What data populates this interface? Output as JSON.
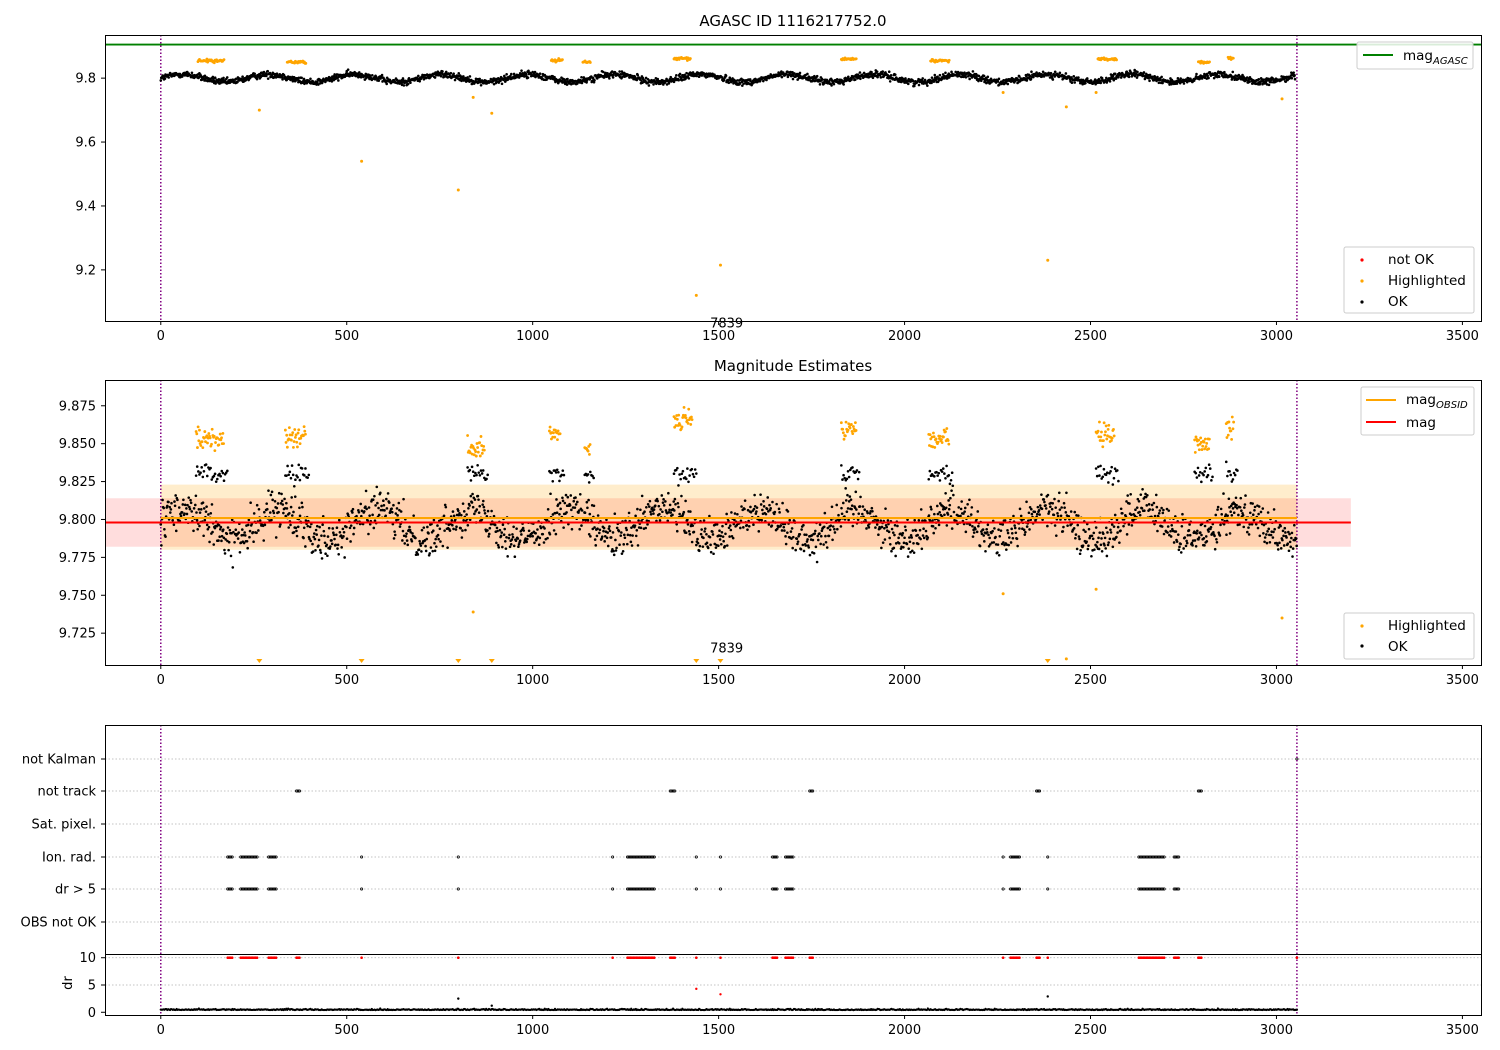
{
  "colors": {
    "ok": "#000000",
    "highlighted": "#ffa500",
    "not_ok": "#ff0000",
    "mag_agasc": "#008000",
    "mag_obsid": "#ffa500",
    "mag": "#ff0000",
    "obs_boundary": "#800080",
    "band_orange": "#ffa50033",
    "band_red": "#ff000022"
  },
  "chart_data": [
    {
      "type": "scatter",
      "title": "AGASC ID 1116217752.0",
      "xlim": [
        -150,
        3550
      ],
      "ylim": [
        9.04,
        9.935
      ],
      "xticks": [
        "0",
        "500",
        "1000",
        "1500",
        "2000",
        "2500",
        "3000",
        "3500"
      ],
      "yticks": [
        "9.2",
        "9.4",
        "9.6",
        "9.8"
      ],
      "hlines": [
        {
          "name": "mag_AGASC",
          "y": 9.905
        }
      ],
      "vlines": [
        0,
        3055
      ],
      "ok_baseline": 9.8,
      "annotation": {
        "text": "7839",
        "x": 1500,
        "y": 9.07
      },
      "highlighted_groups": [
        {
          "x": [
            100,
            170
          ],
          "y": 9.855
        },
        {
          "x": [
            340,
            390
          ],
          "y": 9.85
        },
        {
          "x": [
            1050,
            1080
          ],
          "y": 9.855
        },
        {
          "x": [
            1135,
            1155
          ],
          "y": 9.85
        },
        {
          "x": [
            1380,
            1425
          ],
          "y": 9.86
        },
        {
          "x": [
            1830,
            1870
          ],
          "y": 9.86
        },
        {
          "x": [
            2070,
            2120
          ],
          "y": 9.855
        },
        {
          "x": [
            2520,
            2570
          ],
          "y": 9.86
        },
        {
          "x": [
            2790,
            2820
          ],
          "y": 9.85
        },
        {
          "x": [
            2870,
            2885
          ],
          "y": 9.86
        }
      ],
      "highlighted_outliers": [
        {
          "x": 265,
          "y": 9.7
        },
        {
          "x": 540,
          "y": 9.54
        },
        {
          "x": 800,
          "y": 9.45
        },
        {
          "x": 840,
          "y": 9.74
        },
        {
          "x": 890,
          "y": 9.69
        },
        {
          "x": 1440,
          "y": 9.12
        },
        {
          "x": 1505,
          "y": 9.215
        },
        {
          "x": 2265,
          "y": 9.755
        },
        {
          "x": 2385,
          "y": 9.23
        },
        {
          "x": 2435,
          "y": 9.71
        },
        {
          "x": 2515,
          "y": 9.755
        },
        {
          "x": 3015,
          "y": 9.735
        }
      ],
      "legend_top": [
        {
          "label": "mag",
          "sub": "AGASC"
        }
      ],
      "legend_bottom": [
        {
          "label": "not OK",
          "marker": "not_ok"
        },
        {
          "label": "Highlighted",
          "marker": "highlighted"
        },
        {
          "label": "OK",
          "marker": "ok"
        }
      ]
    },
    {
      "type": "scatter",
      "title": "Magnitude Estimates",
      "xlim": [
        -150,
        3550
      ],
      "ylim": [
        9.704,
        9.892
      ],
      "xticks": [
        "0",
        "500",
        "1000",
        "1500",
        "2000",
        "2500",
        "3000",
        "3500"
      ],
      "yticks": [
        "9.725",
        "9.750",
        "9.775",
        "9.800",
        "9.825",
        "9.850",
        "9.875"
      ],
      "vlines": [
        0,
        3055
      ],
      "mag": 9.798,
      "mag_obsid": 9.801,
      "band_red": {
        "x": [
          -150,
          3200
        ],
        "y": [
          9.782,
          9.814
        ]
      },
      "band_orange": {
        "x": [
          0,
          3055
        ],
        "y": [
          9.78,
          9.823
        ]
      },
      "ok_baseline": 9.797,
      "annotation": {
        "text": "7839",
        "x": 1500,
        "y": 9.707
      },
      "highlighted_groups": [
        {
          "x": [
            95,
            170
          ],
          "y": 9.853
        },
        {
          "x": [
            335,
            390
          ],
          "y": 9.856
        },
        {
          "x": [
            825,
            870
          ],
          "y": 9.846
        },
        {
          "x": [
            1045,
            1075
          ],
          "y": 9.858
        },
        {
          "x": [
            1140,
            1155
          ],
          "y": 9.848
        },
        {
          "x": [
            1380,
            1430
          ],
          "y": 9.865
        },
        {
          "x": [
            1830,
            1870
          ],
          "y": 9.858
        },
        {
          "x": [
            2065,
            2120
          ],
          "y": 9.853
        },
        {
          "x": [
            2515,
            2565
          ],
          "y": 9.855
        },
        {
          "x": [
            2780,
            2820
          ],
          "y": 9.85
        },
        {
          "x": [
            2865,
            2885
          ],
          "y": 9.86
        }
      ],
      "highlighted_outliers": [
        {
          "x": 840,
          "y": 9.739
        },
        {
          "x": 2265,
          "y": 9.751
        },
        {
          "x": 2515,
          "y": 9.754
        },
        {
          "x": 3015,
          "y": 9.735
        },
        {
          "x": 2435,
          "y": 9.708
        }
      ],
      "offscale_markers_x": [
        265,
        540,
        800,
        890,
        1440,
        1505,
        2385
      ],
      "legend_top": [
        {
          "label": "mag",
          "sub": "OBSID",
          "color": "mag_obsid"
        },
        {
          "label": "mag",
          "sub": "",
          "color": "mag"
        }
      ],
      "legend_bottom": [
        {
          "label": "Highlighted",
          "marker": "highlighted"
        },
        {
          "label": "OK",
          "marker": "ok"
        }
      ]
    },
    {
      "type": "scatter",
      "title": "",
      "xlim": [
        -150,
        3550
      ],
      "xticks": [
        "0",
        "500",
        "1000",
        "1500",
        "2000",
        "2500",
        "3000",
        "3500"
      ],
      "flag_rows": [
        "not Kalman",
        "not track",
        "Sat. pixel.",
        "Ion. rad.",
        "dr > 5",
        "OBS not OK"
      ],
      "flag_events": {
        "not track": [
          [
            365,
            375
          ],
          [
            1370,
            1385
          ],
          [
            1745,
            1755
          ],
          [
            2355,
            2365
          ],
          [
            2790,
            2800
          ]
        ],
        "Ion. rad.": [
          [
            180,
            195
          ],
          [
            215,
            260
          ],
          [
            290,
            310
          ],
          [
            540,
            540
          ],
          [
            800,
            800
          ],
          [
            1215,
            1215
          ],
          [
            1255,
            1330
          ],
          [
            1440,
            1440
          ],
          [
            1505,
            1505
          ],
          [
            1645,
            1660
          ],
          [
            1680,
            1700
          ],
          [
            2265,
            2265
          ],
          [
            2285,
            2310
          ],
          [
            2385,
            2385
          ],
          [
            2630,
            2700
          ],
          [
            2725,
            2740
          ]
        ],
        "dr > 5": [
          [
            180,
            195
          ],
          [
            215,
            260
          ],
          [
            290,
            310
          ],
          [
            540,
            540
          ],
          [
            800,
            800
          ],
          [
            1215,
            1215
          ],
          [
            1255,
            1330
          ],
          [
            1440,
            1440
          ],
          [
            1505,
            1505
          ],
          [
            1645,
            1660
          ],
          [
            1680,
            1700
          ],
          [
            2265,
            2265
          ],
          [
            2285,
            2310
          ],
          [
            2385,
            2385
          ],
          [
            2630,
            2700
          ],
          [
            2725,
            2740
          ]
        ],
        "not Kalman": [
          [
            3055,
            3055
          ]
        ]
      },
      "dr_ylabel": "dr",
      "dr_yticks": [
        "0",
        "5",
        "10"
      ],
      "dr_ylim": [
        -0.5,
        10.5
      ],
      "dr_baseline": 0.4,
      "dr_outliers": [
        {
          "x": 800,
          "y": 2.5
        },
        {
          "x": 1440,
          "y": 4.3
        },
        {
          "x": 1505,
          "y": 3.3
        },
        {
          "x": 2385,
          "y": 2.9
        },
        {
          "x": 890,
          "y": 1.2
        }
      ]
    }
  ]
}
